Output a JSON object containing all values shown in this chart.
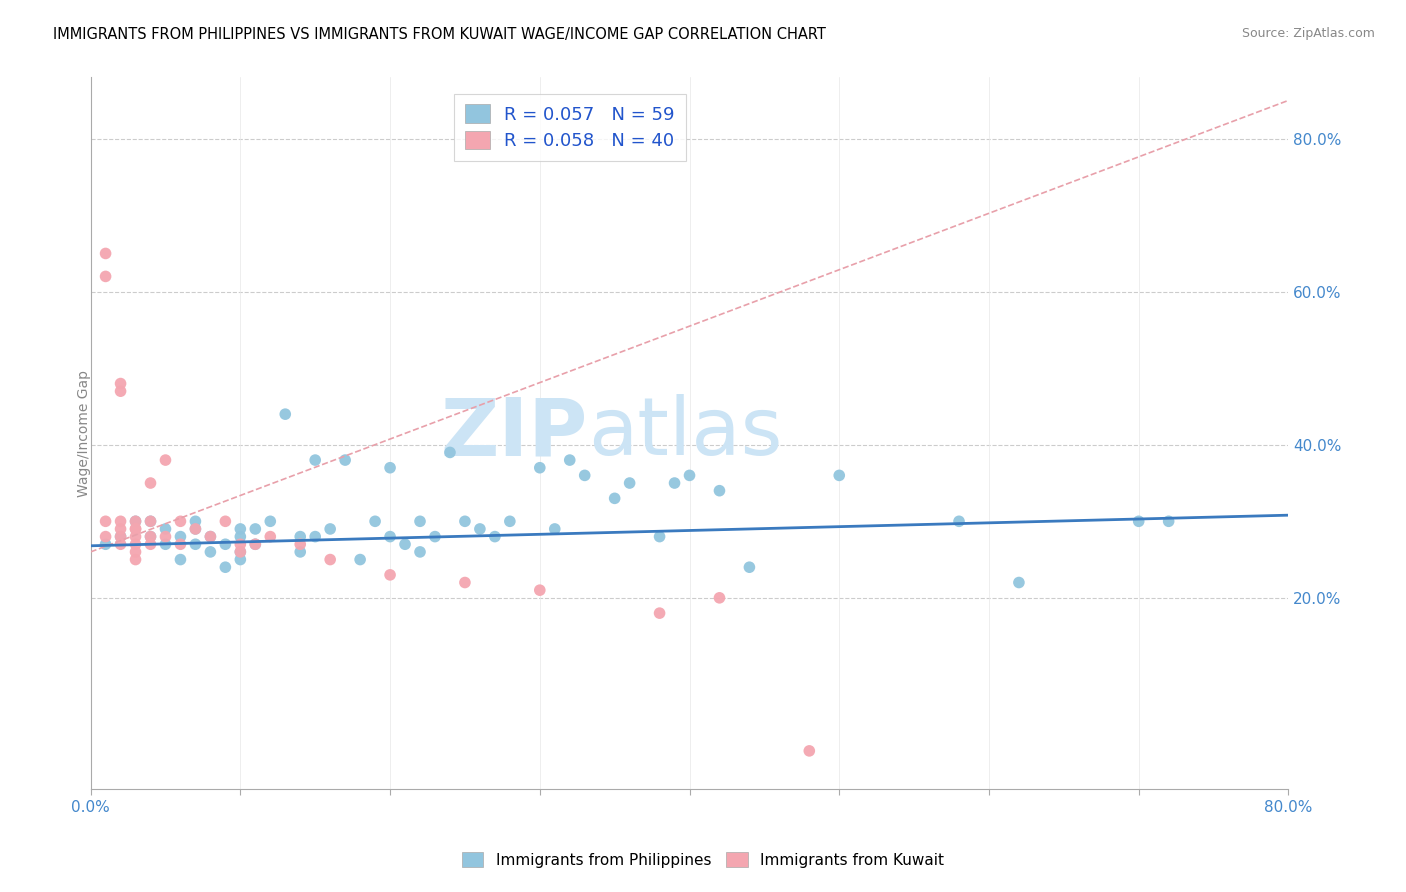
{
  "title": "IMMIGRANTS FROM PHILIPPINES VS IMMIGRANTS FROM KUWAIT WAGE/INCOME GAP CORRELATION CHART",
  "source": "Source: ZipAtlas.com",
  "ylabel": "Wage/Income Gap",
  "xlim": [
    0.0,
    0.8
  ],
  "ylim": [
    -0.05,
    0.88
  ],
  "yticks_right": [
    0.2,
    0.4,
    0.6,
    0.8
  ],
  "ytick_right_labels": [
    "20.0%",
    "40.0%",
    "60.0%",
    "80.0%"
  ],
  "philippines_R": 0.057,
  "philippines_N": 59,
  "kuwait_R": 0.058,
  "kuwait_N": 40,
  "philippines_color": "#92c5de",
  "kuwait_color": "#f4a6b0",
  "trend_philippines_color": "#3a7abf",
  "trend_kuwait_color": "#e8a0aa",
  "watermark_zip": "ZIP",
  "watermark_atlas": "atlas",
  "watermark_color": "#cce4f5",
  "philippines_x": [
    0.01,
    0.02,
    0.03,
    0.04,
    0.04,
    0.05,
    0.05,
    0.06,
    0.06,
    0.07,
    0.07,
    0.07,
    0.08,
    0.08,
    0.09,
    0.09,
    0.1,
    0.1,
    0.1,
    0.1,
    0.11,
    0.11,
    0.12,
    0.13,
    0.14,
    0.14,
    0.15,
    0.15,
    0.16,
    0.17,
    0.18,
    0.19,
    0.2,
    0.2,
    0.21,
    0.22,
    0.22,
    0.23,
    0.24,
    0.25,
    0.26,
    0.27,
    0.28,
    0.3,
    0.31,
    0.32,
    0.33,
    0.35,
    0.36,
    0.38,
    0.39,
    0.4,
    0.42,
    0.44,
    0.5,
    0.58,
    0.62,
    0.7,
    0.72
  ],
  "philippines_y": [
    0.27,
    0.28,
    0.3,
    0.28,
    0.3,
    0.27,
    0.29,
    0.25,
    0.28,
    0.3,
    0.27,
    0.29,
    0.26,
    0.28,
    0.24,
    0.27,
    0.26,
    0.28,
    0.25,
    0.29,
    0.27,
    0.29,
    0.3,
    0.44,
    0.26,
    0.28,
    0.28,
    0.38,
    0.29,
    0.38,
    0.25,
    0.3,
    0.28,
    0.37,
    0.27,
    0.3,
    0.26,
    0.28,
    0.39,
    0.3,
    0.29,
    0.28,
    0.3,
    0.37,
    0.29,
    0.38,
    0.36,
    0.33,
    0.35,
    0.28,
    0.35,
    0.36,
    0.34,
    0.24,
    0.36,
    0.3,
    0.22,
    0.3,
    0.3
  ],
  "kuwait_x": [
    0.01,
    0.01,
    0.01,
    0.01,
    0.02,
    0.02,
    0.02,
    0.02,
    0.02,
    0.02,
    0.03,
    0.03,
    0.03,
    0.03,
    0.03,
    0.03,
    0.03,
    0.04,
    0.04,
    0.04,
    0.04,
    0.05,
    0.05,
    0.06,
    0.06,
    0.07,
    0.08,
    0.09,
    0.1,
    0.1,
    0.11,
    0.12,
    0.14,
    0.16,
    0.2,
    0.25,
    0.3,
    0.38,
    0.42,
    0.48
  ],
  "kuwait_y": [
    0.62,
    0.65,
    0.3,
    0.28,
    0.28,
    0.29,
    0.47,
    0.48,
    0.3,
    0.27,
    0.28,
    0.27,
    0.29,
    0.25,
    0.26,
    0.3,
    0.29,
    0.28,
    0.3,
    0.35,
    0.27,
    0.38,
    0.28,
    0.27,
    0.3,
    0.29,
    0.28,
    0.3,
    0.27,
    0.26,
    0.27,
    0.28,
    0.27,
    0.25,
    0.23,
    0.22,
    0.21,
    0.18,
    0.2,
    0.0
  ],
  "trend_phil_x0": 0.0,
  "trend_phil_x1": 0.8,
  "trend_phil_y0": 0.268,
  "trend_phil_y1": 0.308,
  "trend_kuw_x0": 0.0,
  "trend_kuw_x1": 0.8,
  "trend_kuw_y0": 0.26,
  "trend_kuw_y1": 0.85
}
